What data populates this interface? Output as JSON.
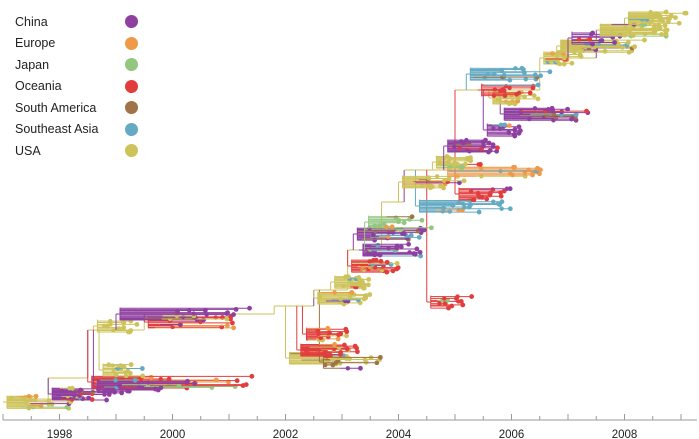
{
  "chart_data": {
    "type": "phylogenetic-tree",
    "xlabel": "",
    "xlim": [
      1997.0,
      2009.3
    ],
    "x_ticks": [
      "1998",
      "2000",
      "2002",
      "2004",
      "2006",
      "2008"
    ],
    "x_tick_values": [
      1998,
      2000,
      2002,
      2004,
      2006,
      2008
    ],
    "minor_tick_step": 0.5,
    "legend": [
      {
        "label": "China",
        "color": "#8e3fa0"
      },
      {
        "label": "Europe",
        "color": "#ee9a48"
      },
      {
        "label": "Japan",
        "color": "#93c67f"
      },
      {
        "label": "Oceania",
        "color": "#e23d3d"
      },
      {
        "label": "South America",
        "color": "#9e7448"
      },
      {
        "label": "Southeast Asia",
        "color": "#64aac3"
      },
      {
        "label": "USA",
        "color": "#cdc35a"
      }
    ],
    "trunk": [
      [
        1997.0,
        2
      ],
      [
        1997.8,
        8
      ],
      [
        1998.5,
        20
      ],
      [
        1999.5,
        24
      ],
      [
        2001.8,
        26
      ],
      [
        2002.5,
        30
      ],
      [
        2003.1,
        40
      ],
      [
        2003.7,
        52
      ],
      [
        2004.1,
        60
      ],
      [
        2005.0,
        80
      ],
      [
        2006.5,
        88
      ],
      [
        2007.5,
        95
      ],
      [
        2008.0,
        98
      ]
    ],
    "clades": [
      {
        "order": 2,
        "start": 1997.0,
        "end": 1998.2,
        "region": "USA",
        "tips": 14
      },
      {
        "order": 4,
        "start": 1997.8,
        "end": 1999.2,
        "region": "China",
        "tips": 16
      },
      {
        "order": 7,
        "start": 1998.5,
        "end": 2001.5,
        "region": "Oceania",
        "tips": 14
      },
      {
        "order": 6,
        "start": 1998.6,
        "end": 2000.4,
        "region": "China",
        "tips": 12
      },
      {
        "order": 10,
        "start": 1998.7,
        "end": 1999.5,
        "region": "USA",
        "tips": 10
      },
      {
        "order": 13,
        "start": 2002.0,
        "end": 2003.7,
        "region": "USA",
        "tips": 12
      },
      {
        "order": 12,
        "start": 2002.6,
        "end": 2003.7,
        "region": "South America",
        "tips": 5
      },
      {
        "order": 15,
        "start": 2002.2,
        "end": 2003.3,
        "region": "Oceania",
        "tips": 14
      },
      {
        "order": 19,
        "start": 2002.3,
        "end": 2003.1,
        "region": "Oceania",
        "tips": 12
      },
      {
        "order": 21,
        "start": 1998.6,
        "end": 1999.5,
        "region": "USA",
        "tips": 8
      },
      {
        "order": 22,
        "start": 1999.5,
        "end": 2001.3,
        "region": "Oceania",
        "tips": 10
      },
      {
        "order": 24,
        "start": 1999.0,
        "end": 2001.7,
        "region": "China",
        "tips": 12
      },
      {
        "order": 27,
        "start": 2004.5,
        "end": 2005.3,
        "region": "Oceania",
        "tips": 8
      },
      {
        "order": 28,
        "start": 2002.5,
        "end": 2003.5,
        "region": "USA",
        "tips": 12
      },
      {
        "order": 32,
        "start": 2002.8,
        "end": 2003.6,
        "region": "USA",
        "tips": 12
      },
      {
        "order": 36,
        "start": 2003.1,
        "end": 2004.0,
        "region": "Oceania",
        "tips": 12
      },
      {
        "order": 40,
        "start": 2003.3,
        "end": 2004.4,
        "region": "China",
        "tips": 14
      },
      {
        "order": 44,
        "start": 2003.2,
        "end": 2004.5,
        "region": "China",
        "tips": 14
      },
      {
        "order": 47,
        "start": 2003.4,
        "end": 2004.6,
        "region": "Japan",
        "tips": 10
      },
      {
        "order": 51,
        "start": 2004.3,
        "end": 2006.2,
        "region": "Southeast Asia",
        "tips": 12
      },
      {
        "order": 54,
        "start": 2005.0,
        "end": 2006.0,
        "region": "Oceania",
        "tips": 10
      },
      {
        "order": 57,
        "start": 2004.0,
        "end": 2005.2,
        "region": "USA",
        "tips": 12
      },
      {
        "order": 60,
        "start": 2004.8,
        "end": 2006.6,
        "region": "Europe",
        "tips": 10
      },
      {
        "order": 62,
        "start": 2004.6,
        "end": 2005.3,
        "region": "USA",
        "tips": 12
      },
      {
        "order": 66,
        "start": 2004.8,
        "end": 2005.8,
        "region": "China",
        "tips": 14
      },
      {
        "order": 70,
        "start": 2005.5,
        "end": 2006.2,
        "region": "China",
        "tips": 10
      },
      {
        "order": 74,
        "start": 2005.8,
        "end": 2007.5,
        "region": "China",
        "tips": 14
      },
      {
        "order": 78,
        "start": 2005.6,
        "end": 2006.5,
        "region": "USA",
        "tips": 12
      },
      {
        "order": 80,
        "start": 2005.4,
        "end": 2006.5,
        "region": "Oceania",
        "tips": 8
      },
      {
        "order": 84,
        "start": 2005.2,
        "end": 2006.7,
        "region": "Southeast Asia",
        "tips": 12
      },
      {
        "order": 88,
        "start": 2006.5,
        "end": 2007.3,
        "region": "USA",
        "tips": 12
      },
      {
        "order": 91,
        "start": 2006.8,
        "end": 2008.5,
        "region": "USA",
        "tips": 16
      },
      {
        "order": 93,
        "start": 2007.0,
        "end": 2008.2,
        "region": "China",
        "tips": 8
      },
      {
        "order": 95,
        "start": 2007.5,
        "end": 2008.8,
        "region": "USA",
        "tips": 16
      },
      {
        "order": 98,
        "start": 2008.0,
        "end": 2009.2,
        "region": "USA",
        "tips": 16
      }
    ]
  }
}
